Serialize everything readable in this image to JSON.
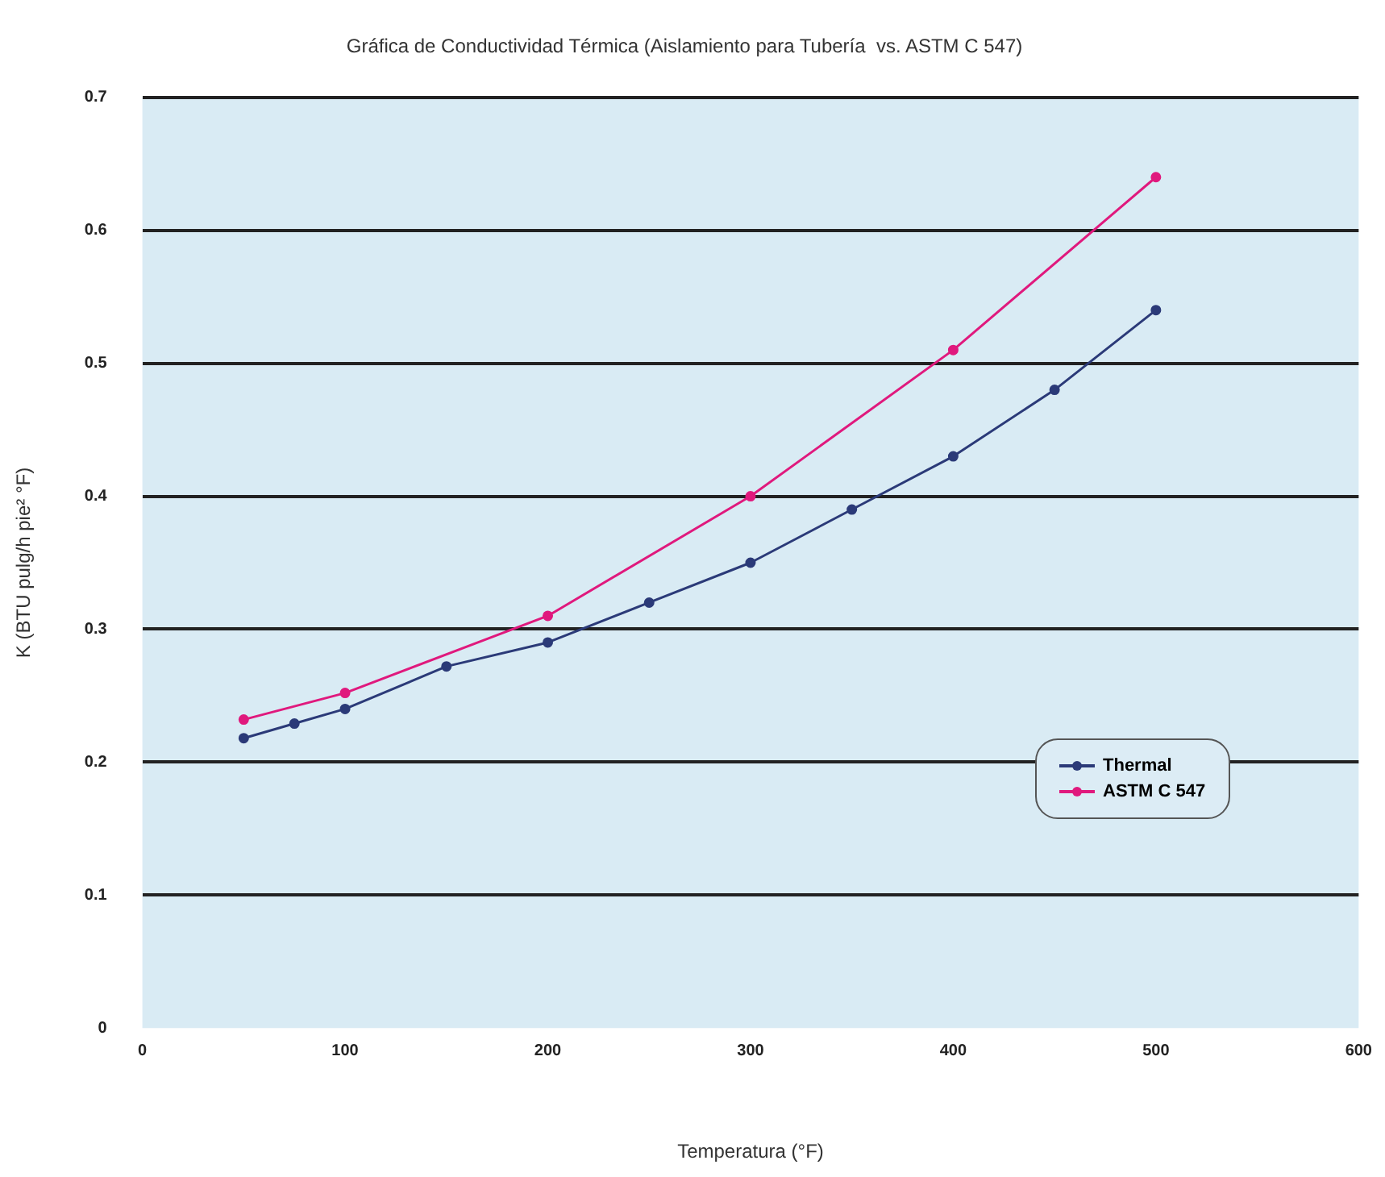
{
  "chart_data": {
    "type": "line",
    "title": "Gráfica de Conductividad Térmica (Aislamiento para Tubería  vs. ASTM C 547)",
    "xlabel": "Temperatura (°F)",
    "ylabel": "K (BTU pulg/h pie² °F)",
    "xlim": [
      0,
      600
    ],
    "xticks": [
      0,
      100,
      200,
      300,
      400,
      500,
      600
    ],
    "ylim": [
      0,
      0.7
    ],
    "yticks": [
      0,
      0.1,
      0.2,
      0.3,
      0.4,
      0.5,
      0.6,
      0.7
    ],
    "grid": "y",
    "legend": "bottom right",
    "marker": "circle",
    "line_style": "solid",
    "series": [
      {
        "name": "Thermal",
        "color": "#2b3a78",
        "x": [
          50,
          75,
          100,
          150,
          200,
          250,
          300,
          350,
          400,
          450,
          500
        ],
        "values": [
          0.218,
          0.229,
          0.24,
          0.272,
          0.29,
          0.32,
          0.35,
          0.39,
          0.43,
          0.48,
          0.54
        ]
      },
      {
        "name": "ASTM C 547",
        "color": "#e0197d",
        "x": [
          50,
          100,
          200,
          300,
          400,
          500
        ],
        "values": [
          0.232,
          0.252,
          0.31,
          0.4,
          0.51,
          0.64
        ]
      }
    ]
  }
}
